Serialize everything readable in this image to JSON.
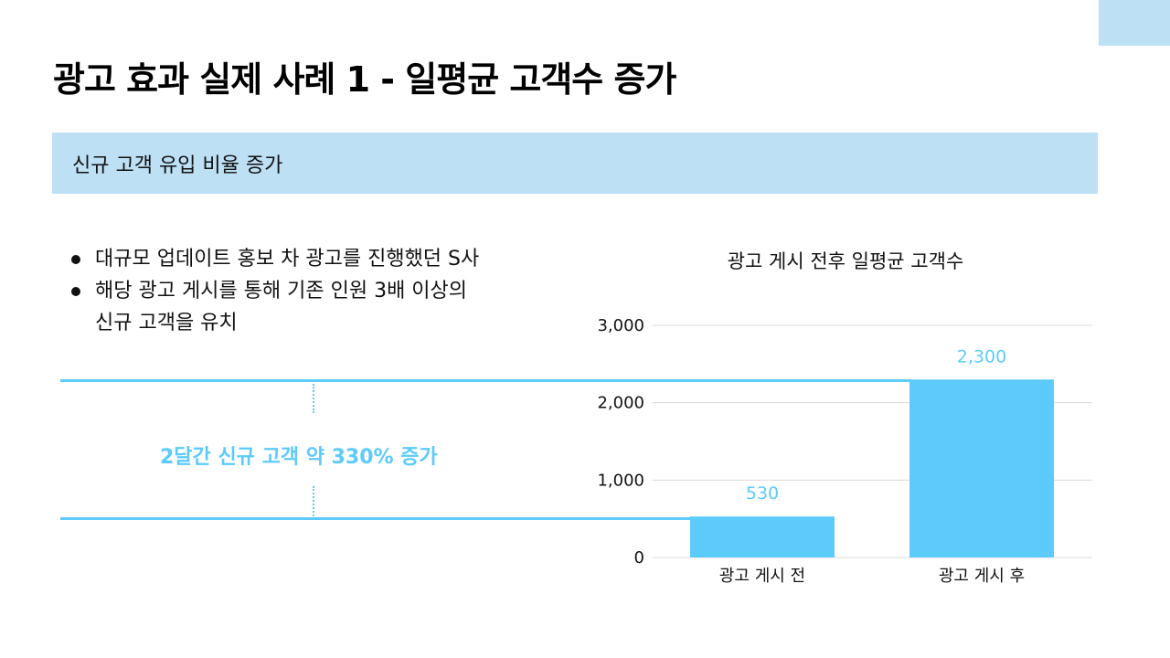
{
  "page": {
    "title": "광고 효과 실제 사례 1 - 일평균 고객수 증가",
    "section_label": "신규 고객 유입 비율 증가",
    "bullets": [
      "대규모 업데이트 홍보 차 광고를 진행했던 S사",
      "해당 광고 게시를 통해 기존 인원 3배 이상의\n신규 고객을 유치"
    ],
    "callout": "2달간 신규 고객 약 330% 증가"
  },
  "colors": {
    "accent": "#5ccbfc",
    "banner": "#bde0f5",
    "grid": "#d9d9d9",
    "text": "#111111"
  },
  "chart_data": {
    "type": "bar",
    "title": "광고 게시 전후 일평균 고객수",
    "categories": [
      "광고 게시 전",
      "광고 게시 후"
    ],
    "values": [
      530,
      2300
    ],
    "data_labels": [
      "530",
      "2,300"
    ],
    "ylim": [
      0,
      3000
    ],
    "yticks": [
      0,
      1000,
      2000,
      3000
    ],
    "ytick_labels": [
      "0",
      "1,000",
      "2,000",
      "3,000"
    ],
    "grid": true,
    "xlabel": "",
    "ylabel": ""
  }
}
